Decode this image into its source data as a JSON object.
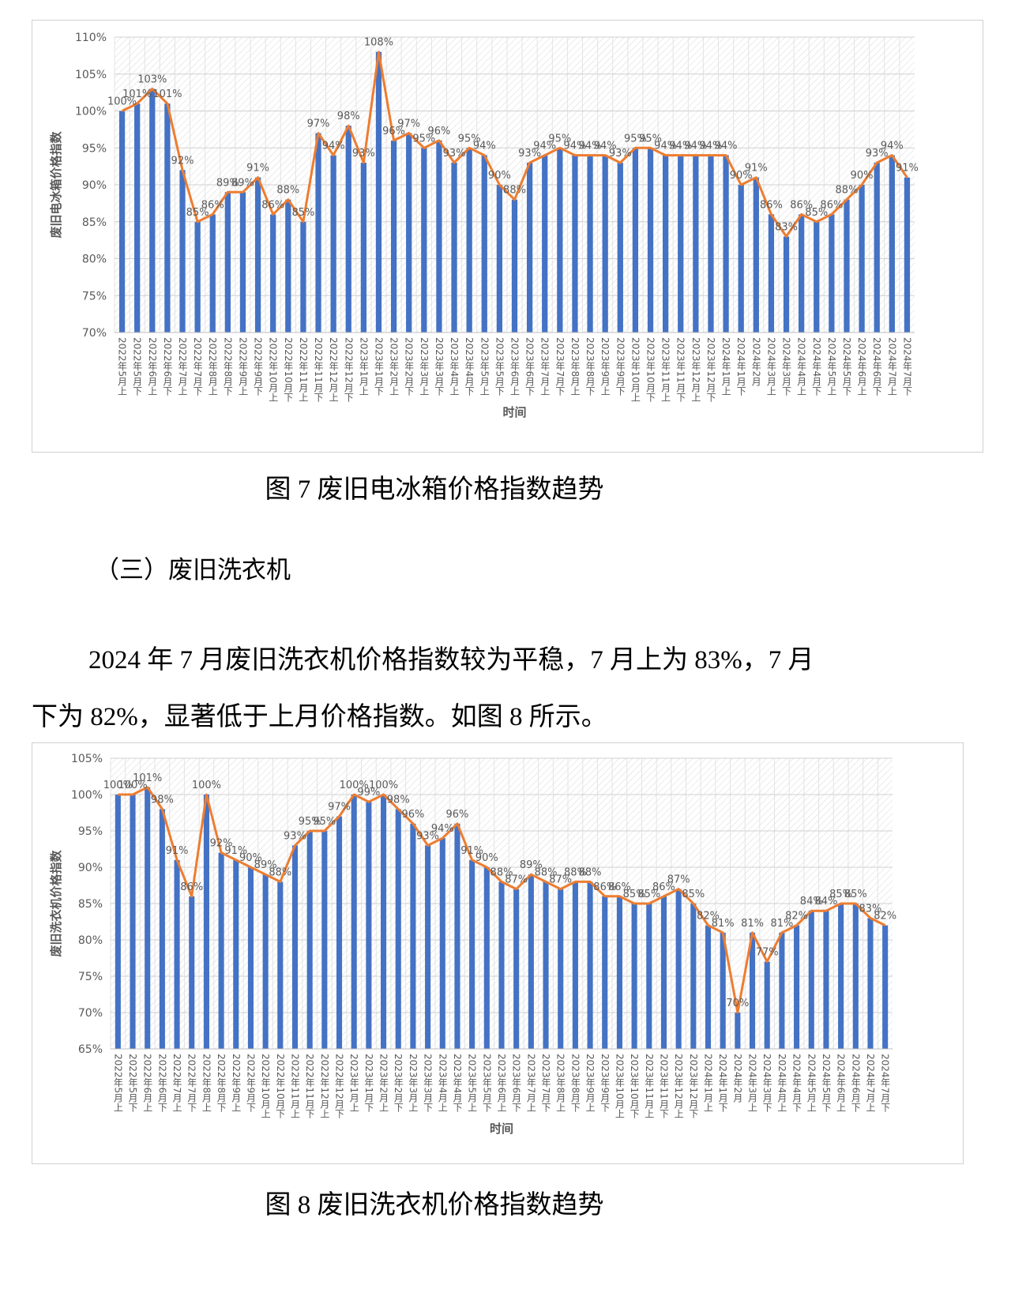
{
  "chart_data": [
    {
      "type": "bar",
      "ylabel": "废旧电冰箱价格指数",
      "xlabel": "时间",
      "categories": [
        "2022年5月上",
        "2022年5月下",
        "2022年6月上",
        "2022年6月下",
        "2022年7月上",
        "2022年7月下",
        "2022年8月上",
        "2022年8月下",
        "2022年9月上",
        "2022年9月下",
        "2022年10月上",
        "2022年10月下",
        "2022年11月上",
        "2022年11月下",
        "2022年12月上",
        "2022年12月下",
        "2023年1月上",
        "2023年1月下",
        "2023年2月上",
        "2023年2月下",
        "2023年3月上",
        "2023年3月下",
        "2023年4月上",
        "2023年4月下",
        "2023年5月上",
        "2023年5月下",
        "2023年6月上",
        "2023年6月下",
        "2023年7月上",
        "2023年7月下",
        "2023年8月上",
        "2023年8月下",
        "2023年9月上",
        "2023年9月下",
        "2023年10月上",
        "2023年10月下",
        "2023年11月上",
        "2023年11月下",
        "2023年12月上",
        "2023年12月下",
        "2024年1月上",
        "2024年1月下",
        "2024年2月",
        "2024年3月上",
        "2024年3月下",
        "2024年4月上",
        "2024年4月下",
        "2024年5月上",
        "2024年5月下",
        "2024年6月上",
        "2024年6月下",
        "2024年7月上",
        "2024年7月下"
      ],
      "values": [
        100,
        101,
        103,
        101,
        92,
        85,
        86,
        89,
        89,
        91,
        86,
        88,
        85,
        97,
        94,
        98,
        93,
        108,
        96,
        97,
        95,
        96,
        93,
        95,
        94,
        90,
        88,
        93,
        94,
        95,
        94,
        94,
        94,
        93,
        95,
        95,
        94,
        94,
        94,
        94,
        94,
        90,
        91,
        86,
        83,
        86,
        85,
        86,
        88,
        90,
        93,
        94,
        91
      ],
      "value_labels": [
        "100%",
        "101%",
        "103%",
        "101%",
        "92%",
        "85%",
        "86%",
        "89%",
        "89%",
        "91%",
        "86%",
        "88%",
        "85%",
        "97%",
        "94%",
        "98%",
        "93%",
        "108%",
        "96%",
        "97%",
        "95%",
        "96%",
        "93%",
        "95%",
        "94%",
        "90%",
        "88%",
        "93%",
        "94%",
        "95%",
        "94%",
        "94%",
        "94%",
        "93%",
        "95%",
        "95%",
        "94%",
        "94%",
        "94%",
        "94%",
        "94%",
        "90%",
        "91%",
        "86%",
        "83%",
        "86%",
        "85%",
        "86%",
        "88%",
        "90%",
        "93%",
        "94%",
        "91%"
      ],
      "color": "#4472c4",
      "line_color": "#ed7d31",
      "ylim": [
        70,
        110
      ],
      "yticks": [
        {
          "value": 70,
          "label": "70%"
        },
        {
          "value": 75,
          "label": "75%"
        },
        {
          "value": 80,
          "label": "80%"
        },
        {
          "value": 85,
          "label": "85%"
        },
        {
          "value": 90,
          "label": "90%"
        },
        {
          "value": 95,
          "label": "95%"
        },
        {
          "value": 100,
          "label": "100%"
        },
        {
          "value": 105,
          "label": "105%"
        },
        {
          "value": 110,
          "label": "110%"
        }
      ],
      "grid": true
    },
    {
      "type": "bar",
      "ylabel": "废旧洗衣机价格指数",
      "xlabel": "时间",
      "categories": [
        "2022年5月上",
        "2022年5月下",
        "2022年6月上",
        "2022年6月下",
        "2022年7月上",
        "2022年7月下",
        "2022年8月上",
        "2022年8月下",
        "2022年9月上",
        "2022年9月下",
        "2022年10月上",
        "2022年10月下",
        "2022年11月上",
        "2022年11月下",
        "2022年12月上",
        "2022年12月下",
        "2023年1月上",
        "2023年1月下",
        "2023年2月上",
        "2023年2月下",
        "2023年3月上",
        "2023年3月下",
        "2023年4月上",
        "2023年4月下",
        "2023年5月上",
        "2023年5月下",
        "2023年6月上",
        "2023年6月下",
        "2023年7月上",
        "2023年7月下",
        "2023年8月上",
        "2023年8月下",
        "2023年9月上",
        "2023年9月下",
        "2023年10月上",
        "2023年10月下",
        "2023年11月上",
        "2023年11月下",
        "2023年12月上",
        "2023年12月下",
        "2024年1月上",
        "2024年1月下",
        "2024年2月",
        "2024年3月上",
        "2024年3月下",
        "2024年4月上",
        "2024年4月下",
        "2024年5月上",
        "2024年5月下",
        "2024年6月上",
        "2024年6月下",
        "2024年7月上",
        "2024年7月下"
      ],
      "values": [
        100,
        100,
        101,
        98,
        91,
        86,
        100,
        92,
        91,
        90,
        89,
        88,
        93,
        95,
        95,
        97,
        100,
        99,
        100,
        98,
        96,
        93,
        94,
        96,
        91,
        90,
        88,
        87,
        89,
        88,
        87,
        88,
        88,
        86,
        86,
        85,
        85,
        86,
        87,
        85,
        82,
        81,
        70,
        81,
        77,
        81,
        82,
        84,
        84,
        85,
        85,
        83,
        82
      ],
      "value_labels": [
        "100%",
        "100%",
        "101%",
        "98%",
        "91%",
        "86%",
        "100%",
        "92%",
        "91%",
        "90%",
        "89%",
        "88%",
        "93%",
        "95%",
        "95%",
        "97%",
        "100%",
        "99%",
        "100%",
        "98%",
        "96%",
        "93%",
        "94%",
        "96%",
        "91%",
        "90%",
        "88%",
        "87%",
        "89%",
        "88%",
        "87%",
        "88%",
        "88%",
        "86%",
        "86%",
        "85%",
        "85%",
        "86%",
        "87%",
        "85%",
        "82%",
        "81%",
        "70%",
        "81%",
        "77%",
        "81%",
        "82%",
        "84%",
        "84%",
        "85%",
        "85%",
        "83%",
        "82%"
      ],
      "color": "#4472c4",
      "line_color": "#ed7d31",
      "ylim": [
        65,
        105
      ],
      "yticks": [
        {
          "value": 65,
          "label": "65%"
        },
        {
          "value": 70,
          "label": "70%"
        },
        {
          "value": 75,
          "label": "75%"
        },
        {
          "value": 80,
          "label": "80%"
        },
        {
          "value": 85,
          "label": "85%"
        },
        {
          "value": 90,
          "label": "90%"
        },
        {
          "value": 95,
          "label": "95%"
        },
        {
          "value": 100,
          "label": "100%"
        },
        {
          "value": 105,
          "label": "105%"
        }
      ],
      "grid": true
    }
  ],
  "figure_captions": [
    "图 7  废旧电冰箱价格指数趋势",
    "图 8  废旧洗衣机价格指数趋势"
  ],
  "section_heading": "（三）废旧洗衣机",
  "paragraph": "2024 年 7 月废旧洗衣机价格指数较为平稳，7 月上为 83%，7 月下为 82%，显著低于上月价格指数。如图 8 所示。"
}
